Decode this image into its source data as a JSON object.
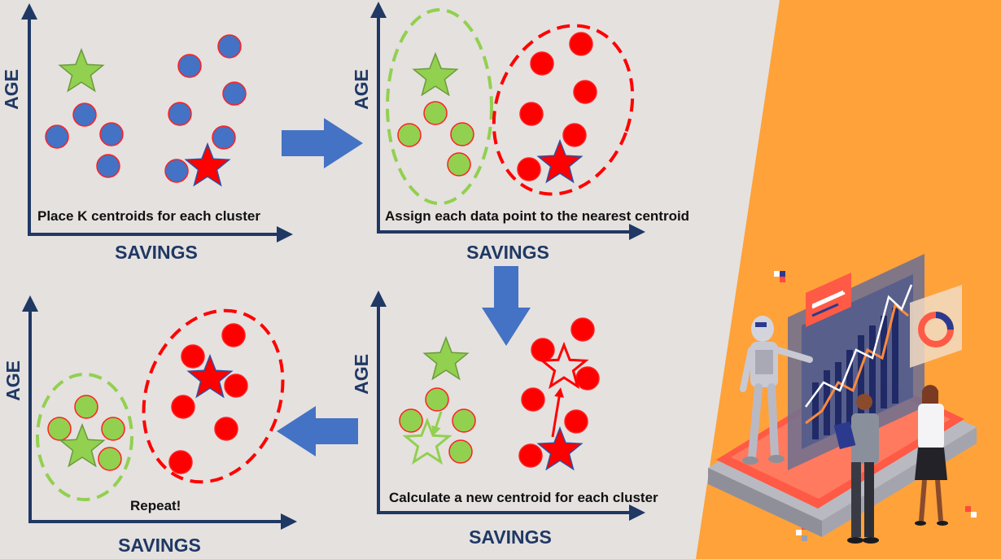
{
  "colors": {
    "background": "#e5e1df",
    "axis": "#1f3864",
    "blue_point": "#4472c4",
    "green_point": "#92d050",
    "red_point": "#ff0000",
    "arrow": "#4472c4",
    "orange_panel": "#ffa23a"
  },
  "panels": [
    {
      "caption": "Place K centroids for each cluster",
      "x_axis_label": "SAVINGS",
      "y_axis_label": "AGE"
    },
    {
      "caption": "Assign each data point to the nearest centroid",
      "x_axis_label": "SAVINGS",
      "y_axis_label": "AGE"
    },
    {
      "caption": "Calculate a new centroid for each cluster",
      "x_axis_label": "SAVINGS",
      "y_axis_label": "AGE"
    },
    {
      "caption": "Repeat!",
      "x_axis_label": "SAVINGS",
      "y_axis_label": "AGE"
    }
  ],
  "flow_arrows": [
    "arrow-right",
    "arrow-down",
    "arrow-left"
  ],
  "illustration": [
    "robot-icon",
    "dashboard-chart-icon",
    "businessman-icon",
    "businesswoman-icon",
    "pixel-decoration-icon"
  ]
}
